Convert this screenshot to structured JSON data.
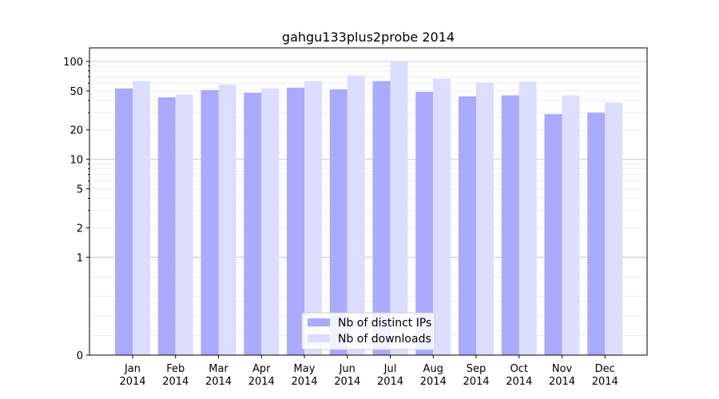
{
  "chart_data": {
    "type": "bar",
    "title": "gahgu133plus2probe 2014",
    "xlabel": "",
    "ylabel": "",
    "yscale": "symlog",
    "ylim": [
      0,
      120
    ],
    "yticks": [
      0,
      1,
      2,
      5,
      10,
      20,
      50,
      100
    ],
    "grid": "horizontal",
    "legend_position": "bottom-center",
    "categories": [
      "Jan 2014",
      "Feb 2014",
      "Mar 2014",
      "Apr 2014",
      "May 2014",
      "Jun 2014",
      "Jul 2014",
      "Aug 2014",
      "Sep 2014",
      "Oct 2014",
      "Nov 2014",
      "Dec 2014"
    ],
    "category_lines": [
      [
        "Jan",
        "2014"
      ],
      [
        "Feb",
        "2014"
      ],
      [
        "Mar",
        "2014"
      ],
      [
        "Apr",
        "2014"
      ],
      [
        "May",
        "2014"
      ],
      [
        "Jun",
        "2014"
      ],
      [
        "Jul",
        "2014"
      ],
      [
        "Aug",
        "2014"
      ],
      [
        "Sep",
        "2014"
      ],
      [
        "Oct",
        "2014"
      ],
      [
        "Nov",
        "2014"
      ],
      [
        "Dec",
        "2014"
      ]
    ],
    "series": [
      {
        "name": "Nb of distinct IPs",
        "color": "#aaaaff",
        "values": [
          53,
          43,
          51,
          48,
          54,
          52,
          63,
          49,
          44,
          45,
          29,
          30
        ]
      },
      {
        "name": "Nb of downloads",
        "color": "#ddddff",
        "values": [
          63,
          46,
          58,
          53,
          63,
          72,
          100,
          67,
          61,
          62,
          45,
          38
        ]
      }
    ]
  }
}
